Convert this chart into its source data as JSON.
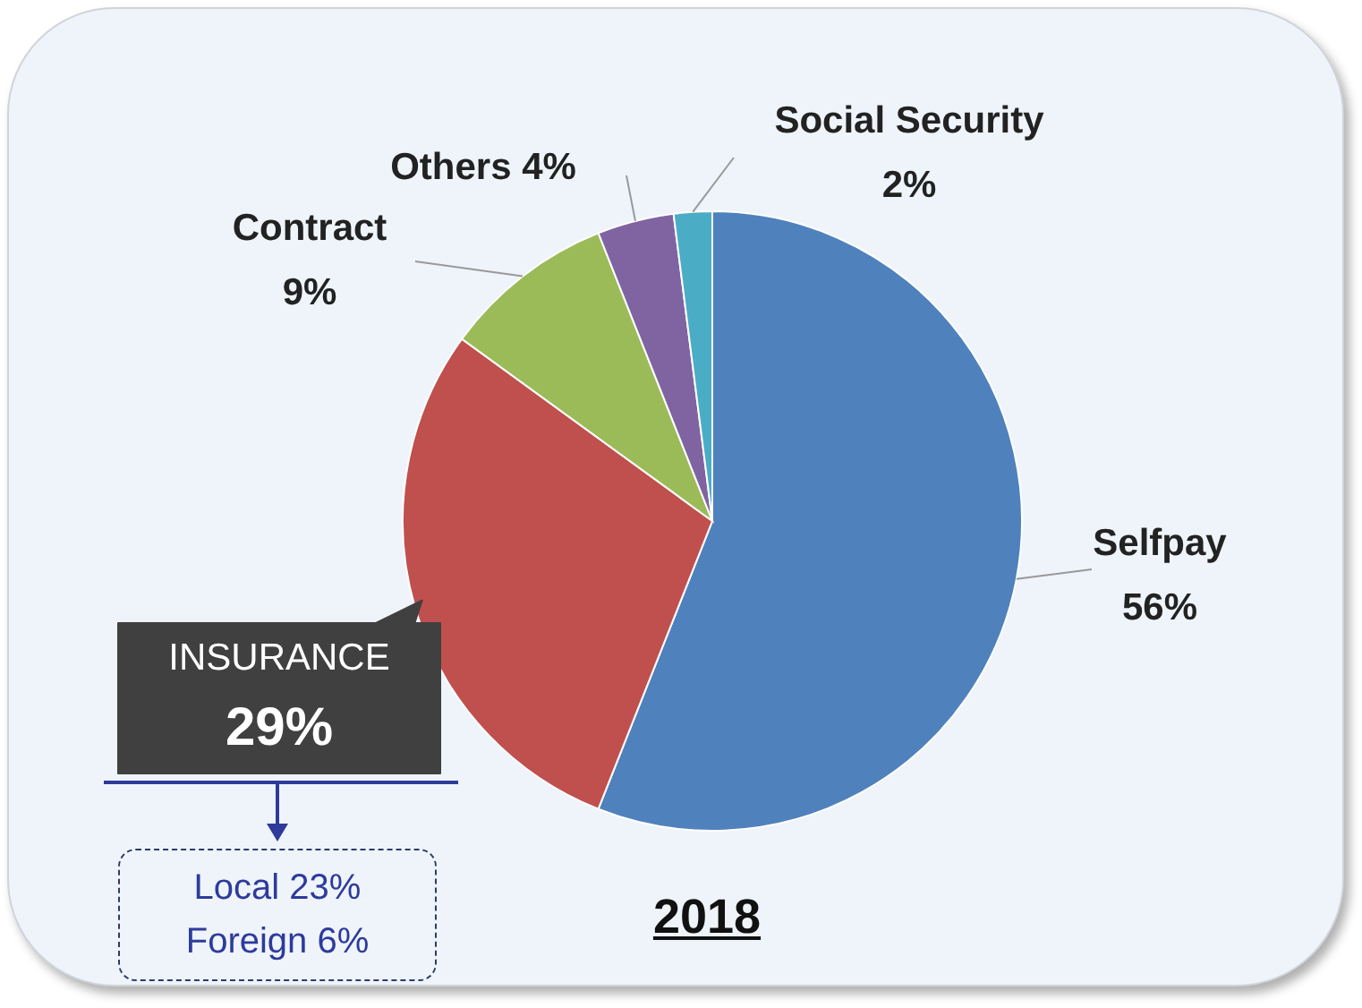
{
  "chart_data": {
    "type": "pie",
    "title": "2018",
    "categories": [
      "Selfpay",
      "INSURANCE",
      "Contract",
      "Others",
      "Social Security"
    ],
    "values": [
      56,
      29,
      9,
      4,
      2
    ],
    "colors": [
      "#4f81bd",
      "#c0504d",
      "#9bbb59",
      "#8064a2",
      "#4bacc6"
    ],
    "value_labels": [
      "56%",
      "29%",
      "9%",
      "4%",
      "2%"
    ],
    "annotations": [
      "Local 23%",
      "Foreign 6%"
    ]
  }
}
